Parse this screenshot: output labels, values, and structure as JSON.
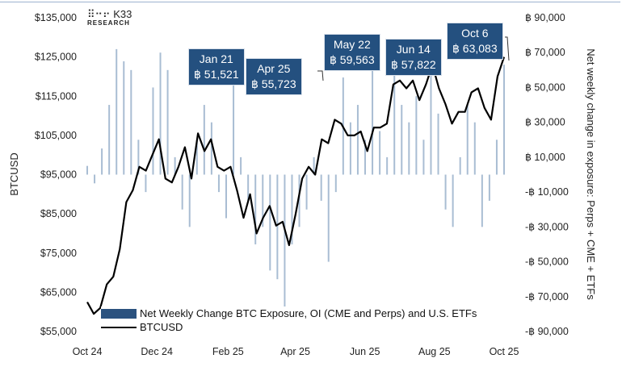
{
  "logo": {
    "name": "K33",
    "sub": "RESEARCH"
  },
  "chart_data": {
    "type": "bar+line",
    "x_unit": "weeks since 2024-10-01",
    "left_axis": {
      "label": "BTCUSD",
      "range": [
        55000,
        135000
      ],
      "ticks": [
        "$55,000",
        "$65,000",
        "$75,000",
        "$85,000",
        "$95,000",
        "$105,000",
        "$115,000",
        "$125,000",
        "$135,000"
      ]
    },
    "right_axis": {
      "label": "Net weekly change in exposure: Perps + CME + ETFs",
      "range": [
        -90000,
        90000
      ],
      "ticks": [
        "-฿ 90,000",
        "-฿ 70,000",
        "-฿ 50,000",
        "-฿ 30,000",
        "-฿ 10,000",
        "฿ 10,000",
        "฿ 30,000",
        "฿ 50,000",
        "฿ 70,000",
        "฿ 90,000"
      ]
    },
    "x_ticks": [
      {
        "label": "Oct 24",
        "x": 0
      },
      {
        "label": "Dec 24",
        "x": 8.7
      },
      {
        "label": "Feb 25",
        "x": 17.6
      },
      {
        "label": "Apr 25",
        "x": 26.0
      },
      {
        "label": "Jun 25",
        "x": 34.7
      },
      {
        "label": "Aug 25",
        "x": 43.4
      },
      {
        "label": "Oct 25",
        "x": 52.1
      }
    ],
    "series": [
      {
        "name": "Net Weekly Change BTC Exposure, OI (CME and Perps) and U.S. ETFs",
        "type": "bar",
        "axis": "right",
        "color": "#a9bdd3",
        "values": [
          5000,
          -5000,
          15000,
          40000,
          72000,
          65000,
          60000,
          20000,
          -10000,
          50000,
          70000,
          60000,
          10000,
          -20000,
          -30000,
          20000,
          40000,
          30000,
          -10000,
          -25000,
          51521,
          10000,
          -15000,
          -40000,
          -30000,
          -55000,
          -60000,
          -82000,
          -40000,
          -30000,
          -20000,
          10000,
          -15000,
          -50000,
          -10000,
          55723,
          30000,
          40000,
          20000,
          59563,
          25000,
          10000,
          57822,
          40000,
          30000,
          45000,
          20000,
          60000,
          35000,
          -20000,
          -30000,
          10000,
          40000,
          30000,
          -30000,
          -15000,
          20000,
          63083
        ]
      },
      {
        "name": "BTCUSD",
        "type": "line",
        "axis": "left",
        "color": "#000000",
        "values": [
          62500,
          59500,
          61000,
          67000,
          69000,
          76000,
          88000,
          91000,
          97000,
          96000,
          100000,
          104000,
          94000,
          93000,
          97000,
          102000,
          94000,
          105500,
          101000,
          104000,
          97000,
          96000,
          97000,
          91000,
          84000,
          90000,
          80000,
          84000,
          87000,
          82000,
          83000,
          77000,
          85000,
          94000,
          97000,
          95000,
          104000,
          103000,
          109000,
          108000,
          105000,
          105000,
          106000,
          101000,
          107000,
          107000,
          108000,
          118000,
          119000,
          117000,
          119000,
          114000,
          118000,
          123000,
          117000,
          113000,
          108000,
          111000,
          111000,
          116000,
          117000,
          112000,
          109000,
          120000,
          125000
        ]
      }
    ],
    "annotations": [
      {
        "date": "Jan 21",
        "value": "฿ 51,521"
      },
      {
        "date": "Apr 25",
        "value": "฿ 55,723"
      },
      {
        "date": "May 22",
        "value": "฿ 59,563"
      },
      {
        "date": "Jun 14",
        "value": "฿ 57,822"
      },
      {
        "date": "Oct 6",
        "value": "฿ 63,083"
      }
    ],
    "legend": [
      "Net Weekly Change BTC Exposure, OI (CME and Perps) and U.S. ETFs",
      "BTCUSD"
    ],
    "legend_position": "bottom-left inside"
  }
}
